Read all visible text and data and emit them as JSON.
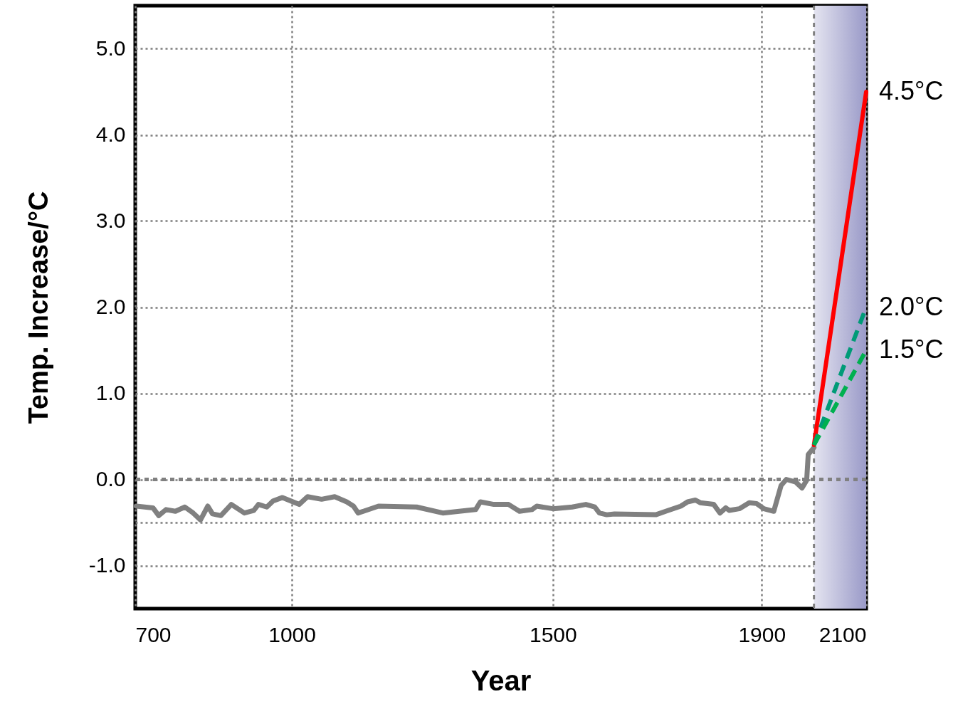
{
  "chart_data": {
    "type": "line",
    "xlabel": "Year",
    "ylabel": "Temp.  Increase/°C",
    "xlim": [
      700,
      2100
    ],
    "ylim": [
      -1.5,
      5.5
    ],
    "xticks": [
      700,
      1000,
      1500,
      1900,
      2100
    ],
    "yticks": [
      {
        "value": -1,
        "label": "-1.0"
      },
      {
        "value": -0.5,
        "label": null
      },
      {
        "value": 0,
        "label": "0.0"
      },
      {
        "value": 1,
        "label": "1.0"
      },
      {
        "value": 2,
        "label": "2.0"
      },
      {
        "value": 3,
        "label": "3.0"
      },
      {
        "value": 4,
        "label": "4.0"
      },
      {
        "value": 5,
        "label": "5.0"
      }
    ],
    "grid": true,
    "marker": "none",
    "series": [
      {
        "color": "#808080",
        "line_style": "solid",
        "x": [
          702,
          734,
          745,
          759,
          777,
          795,
          811,
          825,
          839,
          848,
          864,
          884,
          909,
          927,
          936,
          952,
          964,
          982,
          1014,
          1030,
          1057,
          1082,
          1105,
          1118,
          1127,
          1166,
          1239,
          1289,
          1352,
          1361,
          1387,
          1415,
          1436,
          1460,
          1469,
          1500,
          1537,
          1563,
          1580,
          1589,
          1603,
          1618,
          1697,
          1716,
          1745,
          1758,
          1773,
          1782,
          1808,
          1820,
          1831,
          1838,
          1857,
          1876,
          1890,
          1904,
          1923,
          1937,
          1947,
          1965,
          1977,
          1986,
          1989,
          2000
        ],
        "values": [
          -0.31,
          -0.33,
          -0.42,
          -0.35,
          -0.37,
          -0.32,
          -0.39,
          -0.47,
          -0.31,
          -0.4,
          -0.42,
          -0.29,
          -0.39,
          -0.36,
          -0.29,
          -0.32,
          -0.25,
          -0.21,
          -0.29,
          -0.2,
          -0.23,
          -0.2,
          -0.26,
          -0.31,
          -0.39,
          -0.31,
          -0.32,
          -0.39,
          -0.35,
          -0.26,
          -0.29,
          -0.29,
          -0.37,
          -0.35,
          -0.31,
          -0.34,
          -0.32,
          -0.29,
          -0.32,
          -0.39,
          -0.41,
          -0.4,
          -0.41,
          -0.37,
          -0.31,
          -0.26,
          -0.24,
          -0.27,
          -0.29,
          -0.39,
          -0.33,
          -0.36,
          -0.34,
          -0.27,
          -0.28,
          -0.34,
          -0.37,
          -0.07,
          0,
          -0.03,
          -0.1,
          -0.01,
          0.29,
          0.37
        ]
      },
      {
        "name": "4.5°C",
        "color": "#ff0000",
        "line_style": "solid",
        "x": [
          2000,
          2100
        ],
        "values": [
          0.4,
          4.5
        ]
      },
      {
        "name": "2.0°C",
        "color": "#009b77",
        "line_style": "dashed",
        "x": [
          2000,
          2100
        ],
        "values": [
          0.4,
          2.0
        ]
      },
      {
        "name": "1.5°C",
        "color": "#00b050",
        "line_style": "dashed",
        "x": [
          2000,
          2100
        ],
        "values": [
          0.4,
          1.5
        ]
      }
    ],
    "ref_lines": [
      {
        "axis": "y",
        "value": 0,
        "line_style": "dotted"
      },
      {
        "axis": "x",
        "value": 2000,
        "line_style": "dotted"
      }
    ],
    "bands": [
      {
        "axis": "x",
        "from": 2000,
        "to": 2100,
        "color": "#9a9ac8"
      }
    ]
  }
}
